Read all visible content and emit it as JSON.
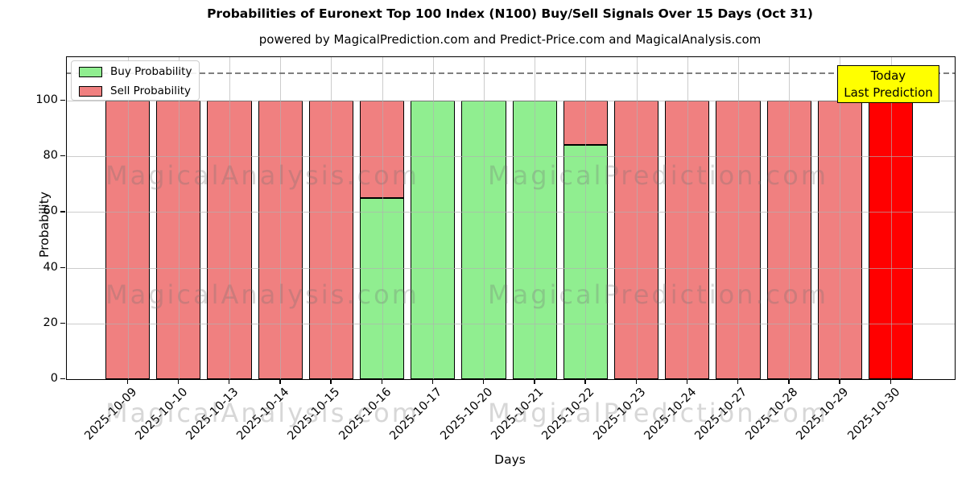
{
  "title": "Probabilities of Euronext Top 100 Index (N100) Buy/Sell Signals Over 15 Days (Oct 31)",
  "subtitle": "powered by MagicalPrediction.com and Predict-Price.com and MagicalAnalysis.com",
  "axes": {
    "xlabel": "Days",
    "ylabel": "Probability",
    "yticks": [
      0,
      20,
      40,
      60,
      80,
      100
    ]
  },
  "legend": {
    "items": [
      {
        "label": "Buy Probability",
        "color": "#90ee90"
      },
      {
        "label": "Sell Probability",
        "color": "#f08080"
      }
    ]
  },
  "annotation": {
    "line1": "Today",
    "line2": "Last Prediction",
    "bg_color": "#ffff00"
  },
  "watermarks": {
    "left_text": "MagicalAnalysis.com",
    "right_text": "MagicalPrediction.com",
    "rows": 3
  },
  "chart_data": {
    "type": "bar",
    "stacked": true,
    "title": "Probabilities of Euronext Top 100 Index (N100) Buy/Sell Signals Over 15 Days (Oct 31)",
    "xlabel": "Days",
    "ylabel": "Probability",
    "ylim": [
      0,
      116
    ],
    "grid": true,
    "legend_position": "upper left",
    "categories": [
      "2025-10-09",
      "2025-10-10",
      "2025-10-13",
      "2025-10-14",
      "2025-10-15",
      "2025-10-16",
      "2025-10-17",
      "2025-10-20",
      "2025-10-21",
      "2025-10-22",
      "2025-10-23",
      "2025-10-24",
      "2025-10-27",
      "2025-10-28",
      "2025-10-29",
      "2025-10-30"
    ],
    "series": [
      {
        "name": "Buy Probability",
        "color": "#90ee90",
        "values": [
          0,
          0,
          0,
          0,
          0,
          65,
          100,
          100,
          100,
          84,
          0,
          0,
          0,
          0,
          0,
          0
        ]
      },
      {
        "name": "Sell Probability",
        "color": "#f08080",
        "values": [
          100,
          100,
          100,
          100,
          100,
          35,
          0,
          0,
          0,
          16,
          100,
          100,
          100,
          100,
          100,
          100
        ]
      }
    ],
    "highlight_bar": {
      "index": 15,
      "series": "Sell Probability",
      "color": "#ff0000"
    },
    "dashed_hline": {
      "y": 110,
      "color": "#7f7f7f",
      "style": "dashed"
    }
  }
}
